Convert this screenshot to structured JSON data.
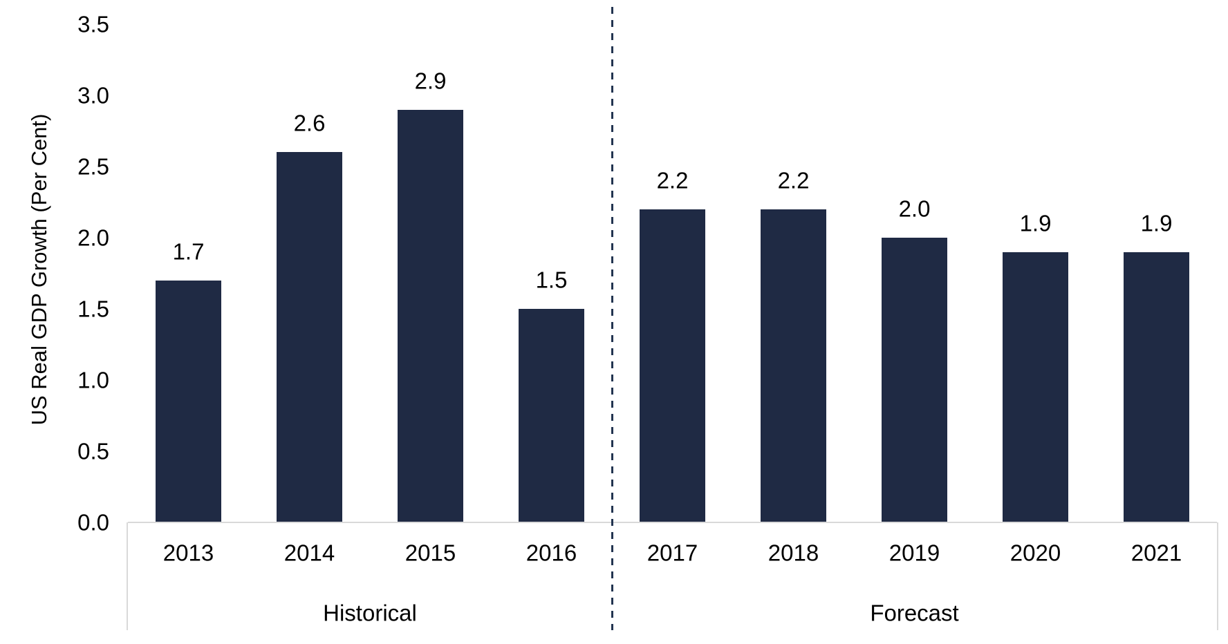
{
  "chart_data": {
    "type": "bar",
    "title": "",
    "xlabel": "",
    "ylabel": "US Real GDP Growth (Per Cent)",
    "categories": [
      "2013",
      "2014",
      "2015",
      "2016",
      "2017",
      "2018",
      "2019",
      "2020",
      "2021"
    ],
    "values": [
      1.7,
      2.6,
      2.9,
      1.5,
      2.2,
      2.2,
      2.0,
      1.9,
      1.9
    ],
    "data_labels": [
      "1.7",
      "2.6",
      "2.9",
      "1.5",
      "2.2",
      "2.2",
      "2.0",
      "1.9",
      "1.9"
    ],
    "groups": [
      {
        "label": "Historical",
        "start": 0,
        "end": 3
      },
      {
        "label": "Forecast",
        "start": 4,
        "end": 8
      }
    ],
    "separator_after_index": 3,
    "separator_style": "dashed",
    "ylim": [
      0.0,
      3.5
    ],
    "ytick_step": 0.5,
    "ytick_labels": [
      "0.0",
      "0.5",
      "1.0",
      "1.5",
      "2.0",
      "2.5",
      "3.0",
      "3.5"
    ],
    "grid": false,
    "legend": "none",
    "colors": {
      "bar": "#1f2a44",
      "separator": "#223450",
      "axis_lines": "#d9d9d9",
      "text": "#000000",
      "background": "#ffffff"
    }
  }
}
